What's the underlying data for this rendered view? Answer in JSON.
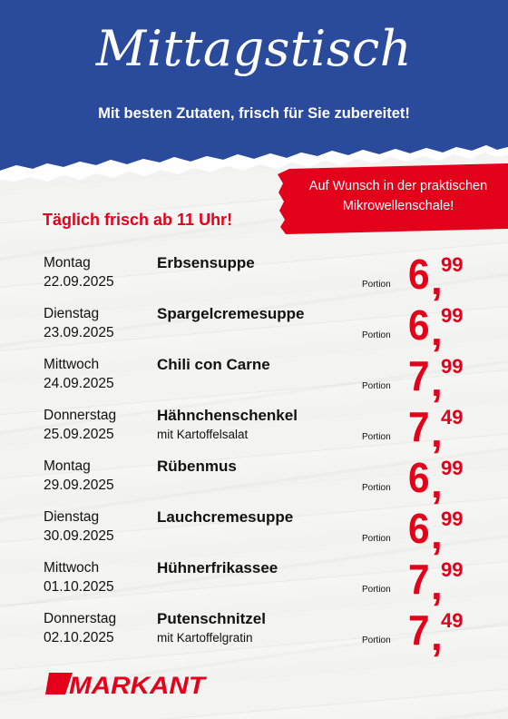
{
  "header": {
    "title": "Mittagstisch",
    "subtitle": "Mit besten Zutaten, frisch für Sie zubereitet!"
  },
  "banner": {
    "line1": "Auf Wunsch in der praktischen",
    "line2": "Mikrowellenschale!"
  },
  "daily": "Täglich frisch ab 11 Uhr!",
  "portion_label": "Portion",
  "menu": [
    {
      "day": "Montag",
      "date": "22.09.2025",
      "dish": "Erbsensuppe",
      "sub": "",
      "price_int": "6",
      "price_cents": "99"
    },
    {
      "day": "Dienstag",
      "date": "23.09.2025",
      "dish": "Spargelcremesuppe",
      "sub": "",
      "price_int": "6",
      "price_cents": "99"
    },
    {
      "day": "Mittwoch",
      "date": "24.09.2025",
      "dish": "Chili con Carne",
      "sub": "",
      "price_int": "7",
      "price_cents": "99"
    },
    {
      "day": "Donnerstag",
      "date": "25.09.2025",
      "dish": "Hähnchenschenkel",
      "sub": "mit Kartoffelsalat",
      "price_int": "7",
      "price_cents": "49"
    },
    {
      "day": "Montag",
      "date": "29.09.2025",
      "dish": "Rübenmus",
      "sub": "",
      "price_int": "6",
      "price_cents": "99"
    },
    {
      "day": "Dienstag",
      "date": "30.09.2025",
      "dish": "Lauchcremesuppe",
      "sub": "",
      "price_int": "6",
      "price_cents": "99"
    },
    {
      "day": "Mittwoch",
      "date": "01.10.2025",
      "dish": "Hühnerfrikassee",
      "sub": "",
      "price_int": "7",
      "price_cents": "99"
    },
    {
      "day": "Donnerstag",
      "date": "02.10.2025",
      "dish": "Putenschnitzel",
      "sub": "mit Kartoffelgratin",
      "price_int": "7",
      "price_cents": "49"
    }
  ],
  "logo": {
    "text": "MARKANT"
  },
  "colors": {
    "blue": "#2a4a9c",
    "red": "#e3001b"
  }
}
